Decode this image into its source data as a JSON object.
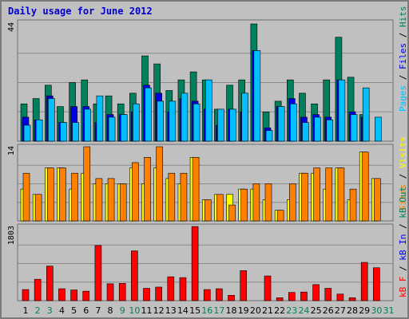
{
  "chart_data": [
    {
      "type": "bar",
      "title": "Daily usage for June 2012",
      "panel": "hits-files-pages",
      "ymax_label": "44",
      "ylim": [
        0,
        44
      ],
      "legend": [
        "Pages",
        "/",
        "Files",
        "/",
        "Hits"
      ],
      "grid": true,
      "categories": [
        "1",
        "2",
        "3",
        "4",
        "5",
        "6",
        "7",
        "8",
        "9",
        "10",
        "11",
        "12",
        "13",
        "14",
        "15",
        "16",
        "17",
        "18",
        "19",
        "20",
        "21",
        "22",
        "23",
        "24",
        "25",
        "26",
        "27",
        "28",
        "29",
        "30",
        "31"
      ],
      "weekend_days": [
        2,
        3,
        9,
        10,
        16,
        17,
        23,
        24,
        30,
        31
      ],
      "series": [
        {
          "name": "Hits",
          "values": [
            14,
            16,
            21,
            13,
            22,
            23,
            14,
            17,
            14,
            18,
            32,
            29,
            19,
            23,
            26,
            23,
            12,
            21,
            23,
            44,
            11,
            15,
            23,
            18,
            14,
            23,
            39,
            24,
            10,
            0,
            0
          ]
        },
        {
          "name": "Files",
          "values": [
            9,
            8,
            17,
            7,
            13,
            13,
            7,
            10,
            10,
            11,
            21,
            18,
            11,
            16,
            15,
            12,
            6,
            12,
            11,
            34,
            5,
            13,
            16,
            9,
            10,
            9,
            23,
            11,
            9,
            0,
            0
          ]
        },
        {
          "name": "Pages",
          "values": [
            6,
            8,
            16,
            7,
            7,
            12,
            17,
            9,
            10,
            14,
            20,
            15,
            15,
            18,
            14,
            23,
            12,
            12,
            18,
            34,
            4,
            13,
            14,
            7,
            9,
            8,
            23,
            10,
            20,
            9,
            0
          ]
        }
      ]
    },
    {
      "type": "bar",
      "panel": "visits-sites",
      "ymax_label": "14",
      "ylim": [
        0,
        14
      ],
      "legend": [
        "Visits",
        "/",
        "Sites"
      ],
      "grid": true,
      "categories": [
        "1",
        "2",
        "3",
        "4",
        "5",
        "6",
        "7",
        "8",
        "9",
        "10",
        "11",
        "12",
        "13",
        "14",
        "15",
        "16",
        "17",
        "18",
        "19",
        "20",
        "21",
        "22",
        "23",
        "24",
        "25",
        "26",
        "27",
        "28",
        "29",
        "30",
        "31"
      ],
      "series": [
        {
          "name": "Visits",
          "values": [
            6,
            5,
            10,
            10,
            6,
            9,
            7,
            7,
            7,
            10,
            7,
            10,
            8,
            7,
            12,
            4,
            5,
            5,
            6,
            6,
            4,
            2,
            4,
            9,
            9,
            6,
            10,
            4,
            13,
            8,
            0
          ]
        },
        {
          "name": "Sites",
          "values": [
            9,
            5,
            10,
            10,
            9,
            14,
            8,
            8,
            7,
            11,
            12,
            14,
            9,
            9,
            12,
            4,
            5,
            3,
            6,
            7,
            7,
            2,
            7,
            9,
            10,
            10,
            10,
            6,
            13,
            8,
            0
          ]
        }
      ]
    },
    {
      "type": "bar",
      "panel": "kbytes",
      "ymax_label": "1803",
      "ylim": [
        0,
        1803
      ],
      "legend": [
        "kB F",
        "/",
        "kB In",
        "/",
        "kB Out"
      ],
      "grid": true,
      "categories": [
        "1",
        "2",
        "3",
        "4",
        "5",
        "6",
        "7",
        "8",
        "9",
        "10",
        "11",
        "12",
        "13",
        "14",
        "15",
        "16",
        "17",
        "18",
        "19",
        "20",
        "21",
        "22",
        "23",
        "24",
        "25",
        "26",
        "27",
        "28",
        "29",
        "30",
        "31"
      ],
      "series": [
        {
          "name": "kB F",
          "values": [
            270,
            520,
            840,
            290,
            260,
            230,
            1340,
            410,
            420,
            1210,
            300,
            330,
            580,
            560,
            1803,
            270,
            290,
            130,
            730,
            0,
            600,
            70,
            200,
            210,
            390,
            300,
            160,
            70,
            930,
            800,
            0
          ]
        }
      ]
    }
  ],
  "colors": {
    "background": "#c0c0c0",
    "plot_bg": "#c0c0c0",
    "title": "#0000cc",
    "hits": "#00805c",
    "files": "#0000e6",
    "pages": "#00c0ff",
    "visits": "#ffff00",
    "sites": "#ff8000",
    "kbf": "#ff0000",
    "weekday_label": "#000000",
    "weekend_label": "#00805c",
    "grid": "#8a8a8a"
  }
}
